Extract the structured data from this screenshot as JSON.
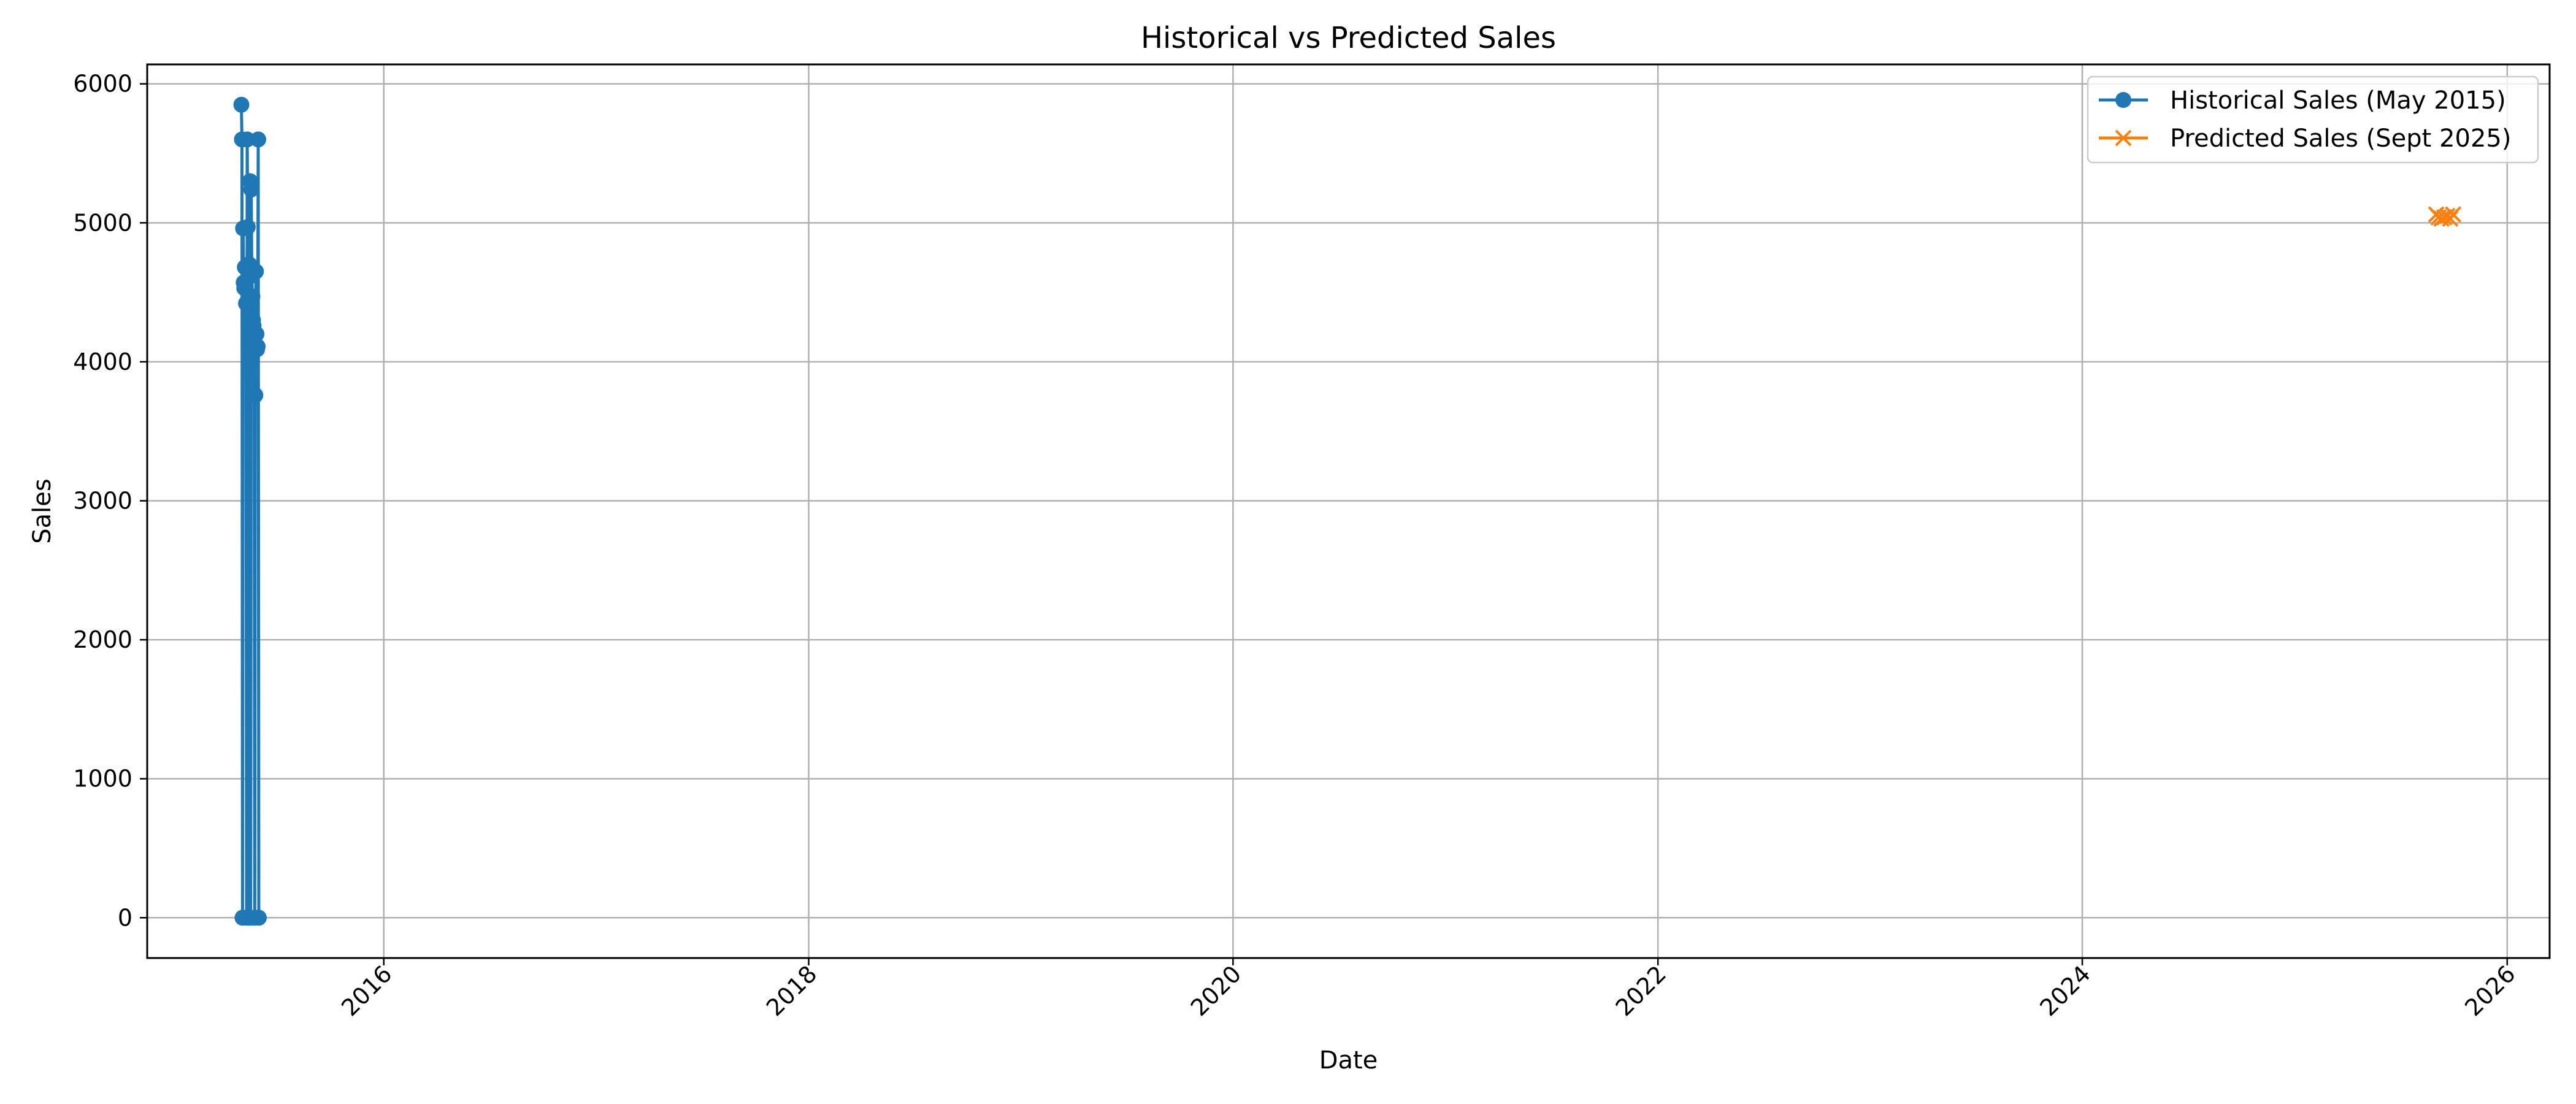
{
  "chart_data": {
    "type": "line",
    "title": "Historical vs Predicted Sales",
    "xlabel": "Date",
    "ylabel": "Sales",
    "x_axis": "date",
    "xlim": [
      "2014-11-20",
      "2026-03-15"
    ],
    "ylim": [
      -290,
      6140
    ],
    "x_ticks": [
      "2016",
      "2018",
      "2020",
      "2022",
      "2024",
      "2026"
    ],
    "y_ticks": [
      0,
      1000,
      2000,
      3000,
      4000,
      5000,
      6000
    ],
    "grid": true,
    "legend_position": "top-right",
    "legend": [
      "Historical Sales (May 2015)",
      "Predicted Sales (Sept 2025)"
    ],
    "series": [
      {
        "name": "Historical Sales (May 2015)",
        "color": "#1f77b4",
        "marker": "circle",
        "x": [
          "2015-05-01",
          "2015-05-02",
          "2015-05-03",
          "2015-05-04",
          "2015-05-05",
          "2015-05-06",
          "2015-05-07",
          "2015-05-08",
          "2015-05-09",
          "2015-05-10",
          "2015-05-11",
          "2015-05-12",
          "2015-05-13",
          "2015-05-14",
          "2015-05-15",
          "2015-05-16",
          "2015-05-17",
          "2015-05-18",
          "2015-05-19",
          "2015-05-20",
          "2015-05-21",
          "2015-05-22",
          "2015-05-23",
          "2015-05-24",
          "2015-05-25",
          "2015-05-26",
          "2015-05-27",
          "2015-05-28",
          "2015-05-29",
          "2015-05-30",
          "2015-05-31"
        ],
        "values": [
          5850,
          5600,
          0,
          4960,
          4570,
          4530,
          4680,
          4550,
          4420,
          0,
          5600,
          4970,
          4700,
          0,
          4700,
          5300,
          0,
          5240,
          4620,
          4470,
          4300,
          4260,
          4120,
          0,
          3760,
          4650,
          4200,
          4090,
          4110,
          5600,
          0
        ]
      },
      {
        "name": "Predicted Sales (Sept 2025)",
        "color": "#ff7f0e",
        "marker": "x",
        "x": [
          "2025-09-01",
          "2025-09-05",
          "2025-09-10",
          "2025-09-15",
          "2025-09-20",
          "2025-09-25",
          "2025-09-30"
        ],
        "values": [
          5060,
          5040,
          5030,
          5040,
          5050,
          5030,
          5060
        ]
      }
    ]
  }
}
